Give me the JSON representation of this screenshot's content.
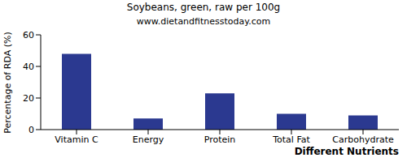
{
  "chart_data": {
    "type": "bar",
    "title": "Soybeans, green, raw per 100g",
    "subtitle": "www.dietandfitnesstoday.com",
    "y_label": "Percentage of RDA (%)",
    "x_label": "Different Nutrients",
    "categories": [
      "Vitamin C",
      "Energy",
      "Protein",
      "Total Fat",
      "Carbohydrate"
    ],
    "values": [
      48,
      7,
      23,
      10,
      9
    ],
    "color": "#2b3990",
    "ylim": [
      0,
      60
    ],
    "yticks": [
      0,
      20,
      40,
      60
    ],
    "grid": false
  }
}
